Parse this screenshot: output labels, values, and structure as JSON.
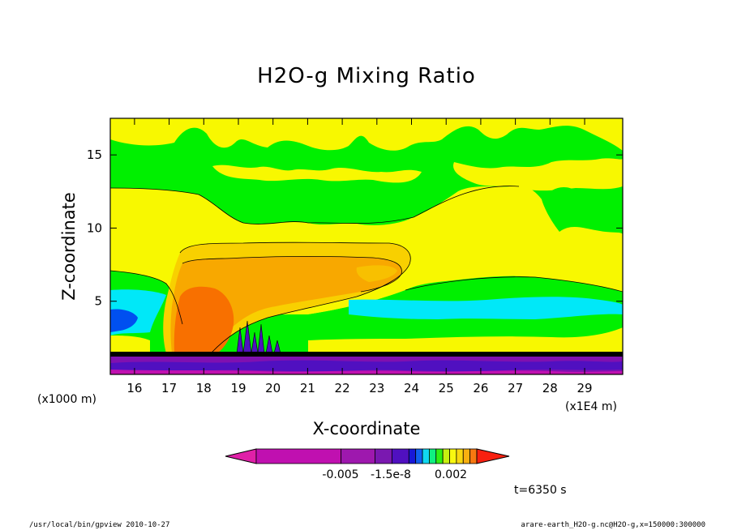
{
  "chart_data": {
    "type": "heatmap",
    "title": "H2O-g Mixing Ratio",
    "xlabel": "X-coordinate",
    "ylabel": "Z-coordinate",
    "x_unit_left": "(x1000 m)",
    "x_unit_right": "(x1E4 m)",
    "xlim": [
      15.3,
      30.1
    ],
    "ylim": [
      0,
      17.5
    ],
    "x_ticks": [
      16,
      17,
      18,
      19,
      20,
      21,
      22,
      23,
      24,
      25,
      26,
      27,
      28,
      29
    ],
    "y_ticks": [
      5,
      10,
      15
    ],
    "colorbar": {
      "colors": [
        "#e020a8",
        "#c010b0",
        "#9e18ae",
        "#7a18b0",
        "#5010c0",
        "#1818d8",
        "#1060f0",
        "#10d8f0",
        "#10f080",
        "#30f010",
        "#c8f010",
        "#f8f810",
        "#f8d810",
        "#f8b010",
        "#f87810",
        "#f82010"
      ],
      "labels": [
        "-0.005",
        "-1.5e-8",
        "0.002"
      ]
    },
    "time_label": "t=6350 s"
  },
  "footer": {
    "left": "/usr/local/bin/gpview  2010-10-27",
    "right": "arare-earth_H2O-g.nc@H2O-g,x=150000:300000"
  },
  "colors": {
    "green": "#00f000",
    "yellow": "#f8f800",
    "gold": "#f8d000",
    "orange": "#f8a800",
    "dark_orange": "#f87000",
    "cyan": "#00e8f8",
    "blue": "#0050f0",
    "purple": "#8010b0",
    "dark_purple": "#5010c0",
    "magenta": "#c010b0"
  }
}
